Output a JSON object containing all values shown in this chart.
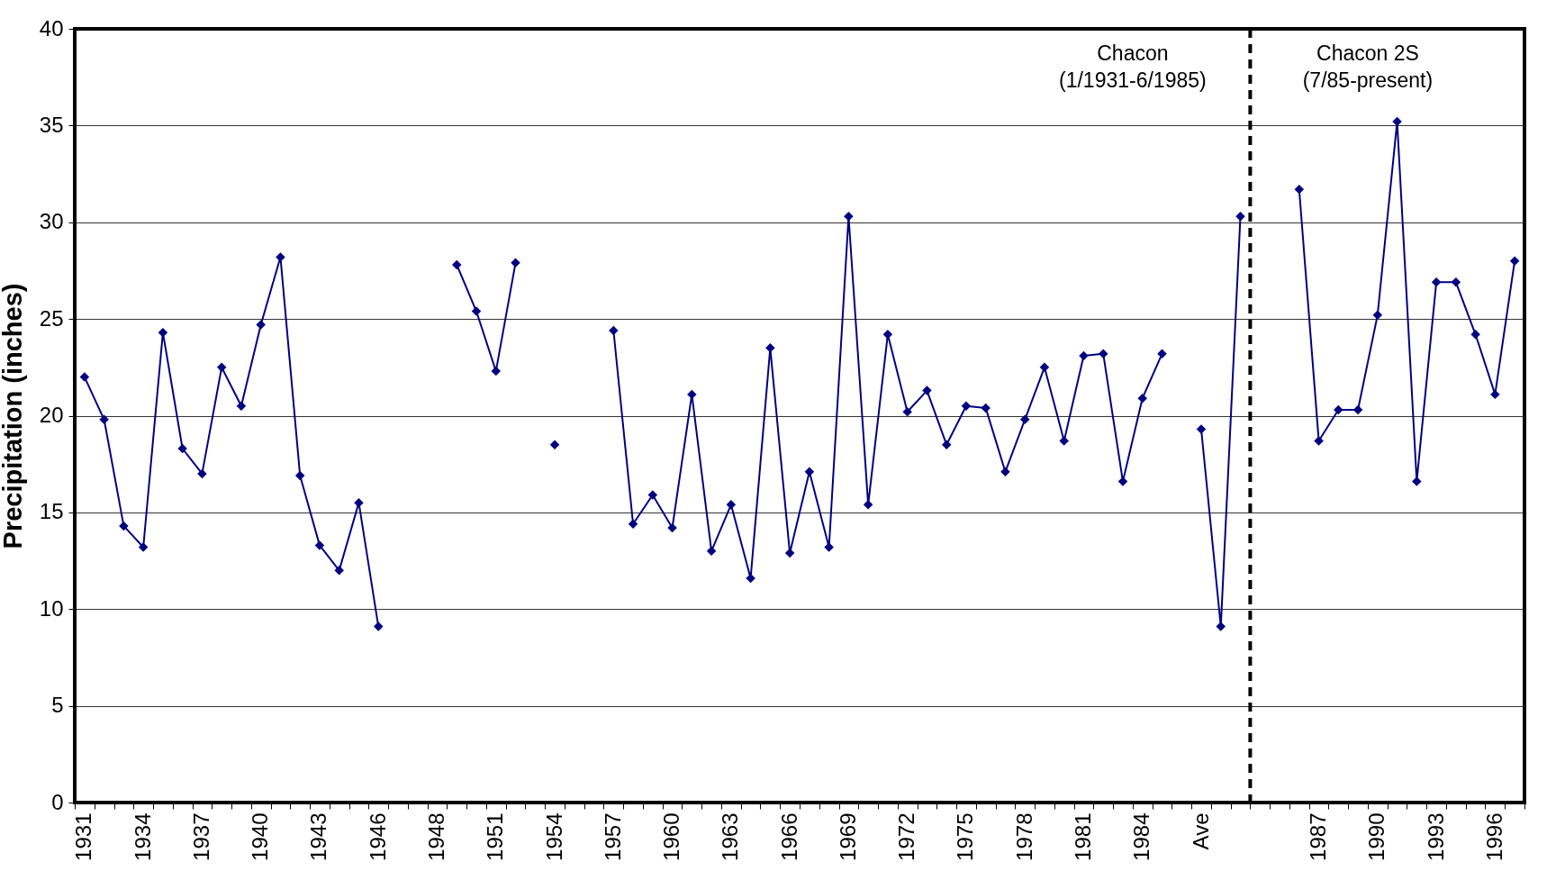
{
  "chart_data": {
    "type": "line",
    "ylabel": "Precipitation (inches)",
    "categories": [
      "1931",
      null,
      null,
      "1934",
      null,
      null,
      "1937",
      null,
      null,
      "1940",
      null,
      null,
      "1943",
      null,
      null,
      "1946",
      null,
      null,
      "1948",
      null,
      null,
      "1951",
      null,
      null,
      "1954",
      null,
      null,
      "1957",
      null,
      null,
      "1960",
      null,
      null,
      "1963",
      null,
      null,
      "1966",
      null,
      null,
      "1969",
      null,
      null,
      "1972",
      null,
      null,
      "1975",
      null,
      null,
      "1978",
      null,
      null,
      "1981",
      null,
      null,
      "1984",
      null,
      null,
      "Ave",
      null,
      null,
      null,
      null,
      null,
      "1987",
      null,
      null,
      "1990",
      null,
      null,
      "1993",
      null,
      null,
      "1996",
      null
    ],
    "series": [
      {
        "color": "#000080",
        "values": [
          22.0,
          19.8,
          14.3,
          13.2,
          24.3,
          18.3,
          17.0,
          22.5,
          20.5,
          24.7,
          28.2,
          16.9,
          13.3,
          12.0,
          15.5,
          9.1,
          null,
          null,
          null,
          27.8,
          25.4,
          22.3,
          27.9,
          null,
          18.5,
          null,
          null,
          24.4,
          14.4,
          15.9,
          14.2,
          21.1,
          13.0,
          15.4,
          11.6,
          23.5,
          12.9,
          17.1,
          13.2,
          30.3,
          15.4,
          24.2,
          20.2,
          21.3,
          18.5,
          20.5,
          20.4,
          17.1,
          19.8,
          22.5,
          18.7,
          23.1,
          23.2,
          16.6,
          20.9,
          23.2,
          null,
          19.3,
          9.1,
          30.3,
          null,
          null,
          31.7,
          18.7,
          20.3,
          20.3,
          25.2,
          35.2,
          16.6,
          26.9,
          26.9,
          24.2,
          21.1,
          28.0
        ]
      }
    ],
    "ylim": [
      0,
      40
    ],
    "yticks": [
      0,
      5,
      10,
      15,
      20,
      25,
      30,
      35,
      40
    ],
    "grid": "y",
    "marker": "diamond",
    "line_style": "solid",
    "annotations": [
      "Chacon\n(1/1931-6/1985)",
      "Chacon 2S\n(7/85-present)"
    ]
  }
}
